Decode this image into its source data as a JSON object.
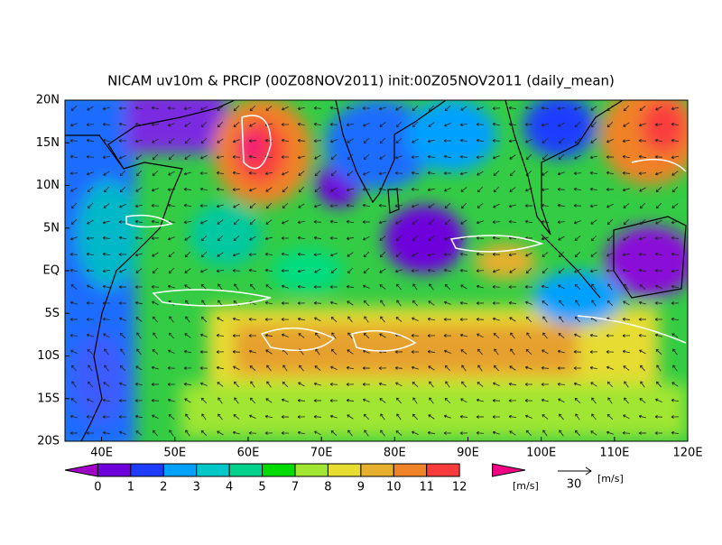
{
  "title": "NICAM uv10m & PRCIP (00Z08NOV2011) init:00Z05NOV2011 (daily_mean)",
  "lat_labels": [
    "20N",
    "15N",
    "10N",
    "5N",
    "EQ",
    "5S",
    "10S",
    "15S",
    "20S"
  ],
  "lon_labels": [
    "40E",
    "50E",
    "60E",
    "70E",
    "80E",
    "90E",
    "100E",
    "110E",
    "120E"
  ],
  "colorbar": {
    "labels": [
      "0",
      "1",
      "2",
      "3",
      "4",
      "5",
      "7",
      "8",
      "9",
      "10",
      "11",
      "12"
    ],
    "colors": [
      "#a000c8",
      "#6e00dc",
      "#1e3cff",
      "#00a0ff",
      "#00c8c8",
      "#00d28c",
      "#00dc00",
      "#a0e632",
      "#e6dc32",
      "#e6af2d",
      "#f08228",
      "#fa3c3c",
      "#f00082"
    ],
    "unit": "[m/s]"
  },
  "reference_vector": {
    "label": "30",
    "unit": "[m/s]"
  }
}
